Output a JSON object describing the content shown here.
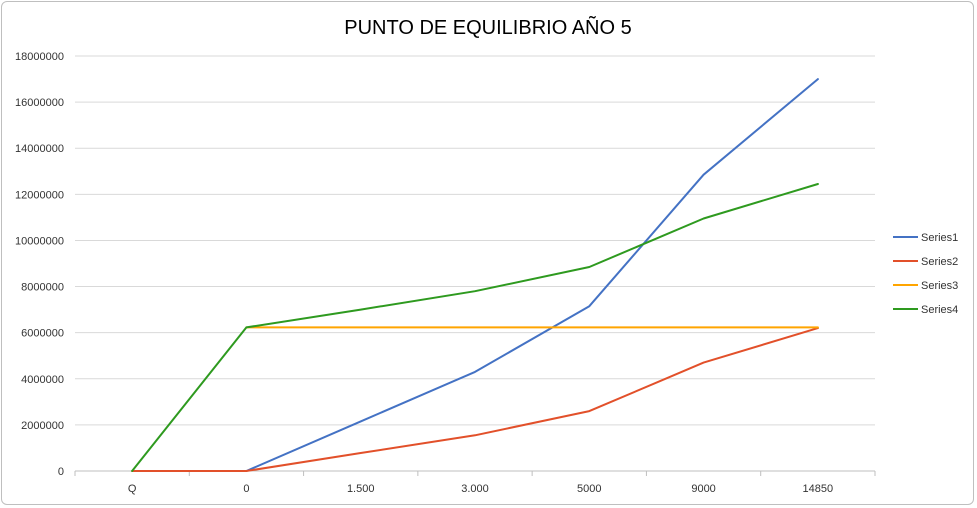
{
  "chart_data": {
    "type": "line",
    "title": "PUNTO DE EQUILIBRIO AÑO 5",
    "categories": [
      "Q",
      "0",
      "1.500",
      "3.000",
      "5000",
      "9000",
      "14850"
    ],
    "ylim": [
      0,
      18000000
    ],
    "yticks": [
      "0",
      "2000000",
      "4000000",
      "6000000",
      "8000000",
      "10000000",
      "12000000",
      "14000000",
      "16000000",
      "18000000"
    ],
    "grid": true,
    "legend": "right",
    "series": [
      {
        "name": "Series1",
        "color": "#4472c4",
        "values": [
          null,
          0,
          2150000,
          4300000,
          7150000,
          12850000,
          17000000
        ]
      },
      {
        "name": "Series2",
        "color": "#e2502a",
        "values": [
          0,
          0,
          780000,
          1550000,
          2600000,
          4700000,
          6200000
        ]
      },
      {
        "name": "Series3",
        "color": "#ffa500",
        "values": [
          null,
          6230000,
          6230000,
          6230000,
          6230000,
          6230000,
          6230000
        ]
      },
      {
        "name": "Series4",
        "color": "#2e9a1f",
        "values": [
          0,
          6230000,
          7000000,
          7800000,
          8850000,
          10950000,
          12450000
        ]
      }
    ]
  }
}
